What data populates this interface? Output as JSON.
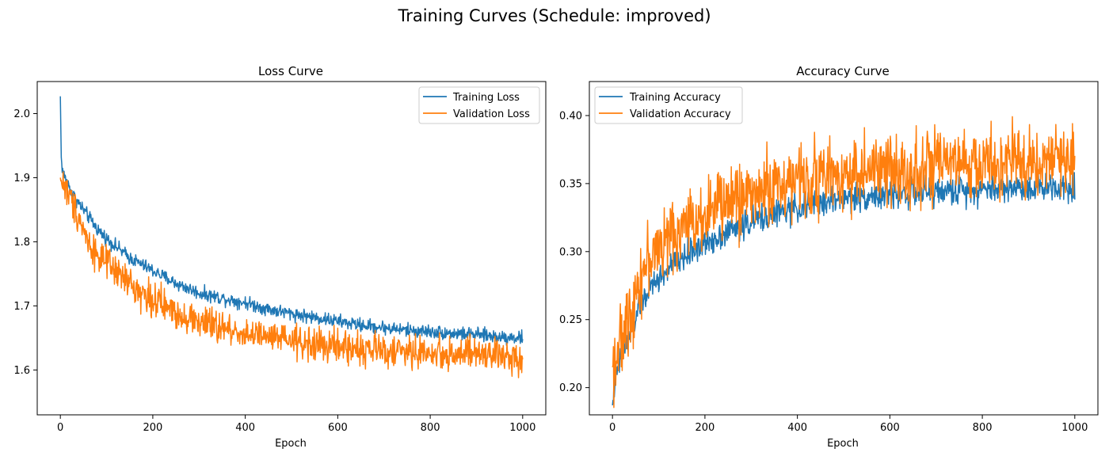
{
  "figure": {
    "suptitle": "Training Curves (Schedule: improved)",
    "colors": {
      "training": "#1f77b4",
      "validation": "#ff7f0e"
    }
  },
  "chart_data": [
    {
      "type": "line",
      "title": "Loss Curve",
      "xlabel": "Epoch",
      "ylabel": "",
      "xlim": [
        -50,
        1050
      ],
      "ylim": [
        1.53,
        2.05
      ],
      "xticks": [
        0,
        200,
        400,
        600,
        800,
        1000
      ],
      "yticks": [
        1.6,
        1.7,
        1.8,
        1.9,
        2.0
      ],
      "ytick_labels": [
        "1.6",
        "1.7",
        "1.8",
        "1.9",
        "2.0"
      ],
      "grid": false,
      "legend": "top-right",
      "series": [
        {
          "name": "Training Loss",
          "color": "#1f77b4",
          "x": [
            0,
            2,
            5,
            10,
            20,
            30,
            40,
            50,
            60,
            80,
            100,
            125,
            150,
            175,
            200,
            250,
            300,
            350,
            400,
            450,
            500,
            550,
            600,
            650,
            700,
            750,
            800,
            850,
            900,
            950,
            1000
          ],
          "y": [
            2.027,
            1.93,
            1.91,
            1.9,
            1.885,
            1.87,
            1.86,
            1.85,
            1.84,
            1.82,
            1.805,
            1.79,
            1.775,
            1.765,
            1.755,
            1.735,
            1.72,
            1.712,
            1.705,
            1.695,
            1.688,
            1.682,
            1.676,
            1.67,
            1.666,
            1.662,
            1.66,
            1.657,
            1.655,
            1.652,
            1.65
          ],
          "noise": 0.008
        },
        {
          "name": "Validation Loss",
          "color": "#ff7f0e",
          "x": [
            0,
            2,
            5,
            10,
            20,
            30,
            40,
            50,
            60,
            80,
            100,
            125,
            150,
            175,
            200,
            250,
            300,
            350,
            400,
            450,
            500,
            550,
            600,
            650,
            700,
            750,
            800,
            850,
            900,
            950,
            1000
          ],
          "y": [
            1.9,
            1.89,
            1.895,
            1.885,
            1.87,
            1.855,
            1.84,
            1.82,
            1.8,
            1.78,
            1.765,
            1.75,
            1.735,
            1.72,
            1.71,
            1.69,
            1.675,
            1.665,
            1.657,
            1.65,
            1.645,
            1.64,
            1.636,
            1.633,
            1.63,
            1.628,
            1.626,
            1.625,
            1.624,
            1.622,
            1.62
          ],
          "noise": 0.02
        }
      ]
    },
    {
      "type": "line",
      "title": "Accuracy Curve",
      "xlabel": "Epoch",
      "ylabel": "",
      "xlim": [
        -50,
        1050
      ],
      "ylim": [
        0.18,
        0.425
      ],
      "xticks": [
        0,
        200,
        400,
        600,
        800,
        1000
      ],
      "yticks": [
        0.2,
        0.25,
        0.3,
        0.35,
        0.4
      ],
      "ytick_labels": [
        "0.20",
        "0.25",
        "0.30",
        "0.35",
        "0.40"
      ],
      "grid": false,
      "legend": "top-left",
      "series": [
        {
          "name": "Training Accuracy",
          "color": "#1f77b4",
          "x": [
            0,
            5,
            10,
            20,
            30,
            40,
            50,
            60,
            80,
            100,
            125,
            150,
            175,
            200,
            250,
            300,
            350,
            400,
            450,
            500,
            550,
            600,
            650,
            700,
            750,
            800,
            850,
            900,
            950,
            1000
          ],
          "y": [
            0.187,
            0.205,
            0.212,
            0.222,
            0.232,
            0.242,
            0.252,
            0.262,
            0.272,
            0.28,
            0.288,
            0.295,
            0.301,
            0.306,
            0.315,
            0.322,
            0.328,
            0.332,
            0.336,
            0.339,
            0.341,
            0.342,
            0.343,
            0.344,
            0.345,
            0.346,
            0.347,
            0.347,
            0.348,
            0.348
          ],
          "noise": 0.008
        },
        {
          "name": "Validation Accuracy",
          "color": "#ff7f0e",
          "x": [
            0,
            5,
            10,
            20,
            30,
            40,
            50,
            60,
            80,
            100,
            125,
            150,
            175,
            200,
            250,
            300,
            350,
            400,
            450,
            500,
            550,
            600,
            650,
            700,
            750,
            800,
            850,
            900,
            950,
            1000
          ],
          "y": [
            0.215,
            0.222,
            0.226,
            0.232,
            0.245,
            0.258,
            0.27,
            0.282,
            0.295,
            0.303,
            0.31,
            0.317,
            0.323,
            0.329,
            0.337,
            0.343,
            0.348,
            0.352,
            0.355,
            0.357,
            0.359,
            0.36,
            0.361,
            0.362,
            0.363,
            0.364,
            0.365,
            0.366,
            0.367,
            0.368
          ],
          "noise": 0.02
        }
      ]
    }
  ]
}
